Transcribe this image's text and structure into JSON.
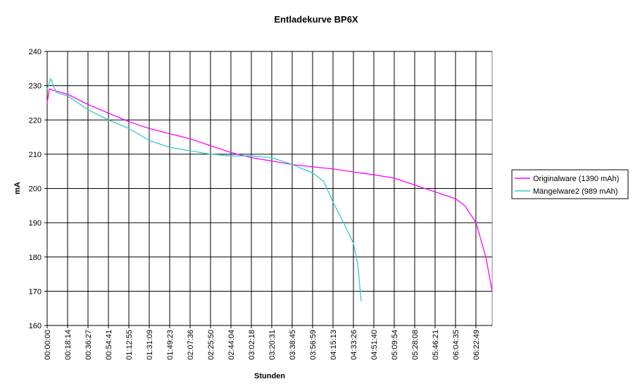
{
  "chart_data": {
    "type": "line",
    "title": "Entladekurve BP6X",
    "x_label": "Stunden",
    "y_label": "mA",
    "xlim": [
      0,
      23839
    ],
    "ylim": [
      160,
      240
    ],
    "yticks": [
      160,
      170,
      180,
      190,
      200,
      210,
      220,
      230,
      240
    ],
    "xticks": [
      {
        "value": 0,
        "label": "00:00:00"
      },
      {
        "value": 1094,
        "label": "00:18:14"
      },
      {
        "value": 2187,
        "label": "00:36:27"
      },
      {
        "value": 3281,
        "label": "00:54:41"
      },
      {
        "value": 4375,
        "label": "01:12:55"
      },
      {
        "value": 5469,
        "label": "01:31:09"
      },
      {
        "value": 6563,
        "label": "01:49:23"
      },
      {
        "value": 7656,
        "label": "02:07:36"
      },
      {
        "value": 8750,
        "label": "02:25:50"
      },
      {
        "value": 9844,
        "label": "02:44:04"
      },
      {
        "value": 10938,
        "label": "03:02:18"
      },
      {
        "value": 12031,
        "label": "03:20:31"
      },
      {
        "value": 13125,
        "label": "03:38:45"
      },
      {
        "value": 14219,
        "label": "03:56:59"
      },
      {
        "value": 15313,
        "label": "04:15:13"
      },
      {
        "value": 16406,
        "label": "04:33:26"
      },
      {
        "value": 17500,
        "label": "04:51:40"
      },
      {
        "value": 18594,
        "label": "05:09:54"
      },
      {
        "value": 19688,
        "label": "05:28:08"
      },
      {
        "value": 20781,
        "label": "05:46:21"
      },
      {
        "value": 21875,
        "label": "06:04:35"
      },
      {
        "value": 22969,
        "label": "06:22:49"
      }
    ],
    "grid": true,
    "legend": "right",
    "series": [
      {
        "name": "Originalware (1390 mAh)",
        "color": "#ff00ff",
        "x": [
          0,
          113,
          1094,
          2188,
          3282,
          4376,
          5469,
          6563,
          7657,
          8751,
          9845,
          10939,
          12033,
          13127,
          14220,
          15314,
          16408,
          17502,
          18596,
          19690,
          20784,
          21878,
          22368,
          22972,
          23500,
          23839
        ],
        "values": [
          225,
          229,
          227.5,
          224.5,
          222,
          219.5,
          217.5,
          216,
          214.5,
          212.5,
          210.5,
          209,
          208,
          207,
          206.3,
          205.7,
          204.8,
          204,
          203,
          201,
          199,
          197,
          195,
          190,
          180,
          170
        ]
      },
      {
        "name": "Mängelware2 (989 mAh)",
        "color": "#33cccc",
        "x": [
          0,
          189,
          490,
          1094,
          2188,
          3282,
          4376,
          5469,
          6563,
          7657,
          8751,
          9845,
          10939,
          12033,
          13127,
          14220,
          14824,
          15314,
          15880,
          16408,
          16635,
          16823
        ],
        "values": [
          229,
          232,
          228,
          227,
          223,
          220,
          217.5,
          214,
          212,
          211,
          210,
          209.5,
          209.5,
          209,
          207,
          204.5,
          202,
          196,
          190,
          184,
          178,
          167
        ]
      }
    ]
  }
}
